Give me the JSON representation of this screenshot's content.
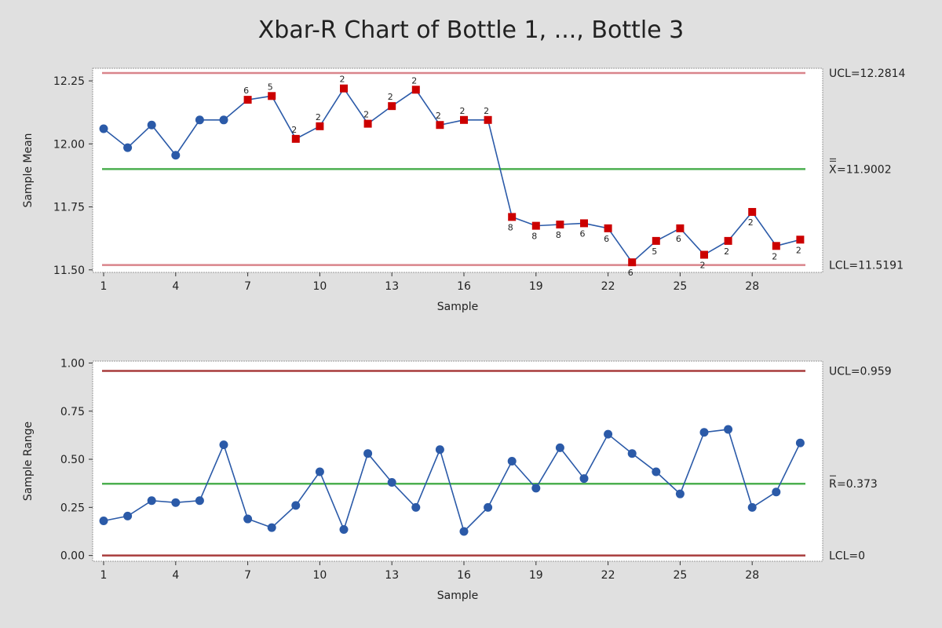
{
  "chart_data": {
    "type": "line",
    "title": "Xbar-R Chart of Bottle 1, ..., Bottle 3",
    "colors": {
      "points": "#2b5aa8",
      "out_of_control": "#cc0000",
      "center_line": "#4caf50",
      "limit_line_xbar": "#d9848b",
      "limit_line_r": "#a83c3c"
    },
    "panels": [
      {
        "id": "xbar",
        "ylabel": "Sample Mean",
        "xlabel": "Sample",
        "ylim": [
          11.49,
          12.3
        ],
        "yticks": [
          "11.50",
          "11.75",
          "12.00",
          "12.25"
        ],
        "ytick_values": [
          11.5,
          11.75,
          12.0,
          12.25
        ],
        "xticks": [
          1,
          4,
          7,
          10,
          13,
          16,
          19,
          22,
          25,
          28
        ],
        "ucl": 12.2814,
        "center": 11.9002,
        "lcl": 11.5191,
        "ucl_label": "UCL=12.2814",
        "center_label": "=11.9002",
        "center_symbol": "X",
        "lcl_label": "LCL=11.5191",
        "points": [
          {
            "x": 1,
            "y": 12.06,
            "flag": ""
          },
          {
            "x": 2,
            "y": 11.985,
            "flag": ""
          },
          {
            "x": 3,
            "y": 12.075,
            "flag": ""
          },
          {
            "x": 4,
            "y": 11.955,
            "flag": ""
          },
          {
            "x": 5,
            "y": 12.095,
            "flag": ""
          },
          {
            "x": 6,
            "y": 12.095,
            "flag": ""
          },
          {
            "x": 7,
            "y": 12.175,
            "flag": "6"
          },
          {
            "x": 8,
            "y": 12.19,
            "flag": "5"
          },
          {
            "x": 9,
            "y": 12.02,
            "flag": "2"
          },
          {
            "x": 10,
            "y": 12.07,
            "flag": "2"
          },
          {
            "x": 11,
            "y": 12.22,
            "flag": "2"
          },
          {
            "x": 12,
            "y": 12.08,
            "flag": "2"
          },
          {
            "x": 13,
            "y": 12.15,
            "flag": "2"
          },
          {
            "x": 14,
            "y": 12.215,
            "flag": "2"
          },
          {
            "x": 15,
            "y": 12.075,
            "flag": "2"
          },
          {
            "x": 16,
            "y": 12.095,
            "flag": "2"
          },
          {
            "x": 17,
            "y": 12.095,
            "flag": "2"
          },
          {
            "x": 18,
            "y": 11.71,
            "flag": "8"
          },
          {
            "x": 19,
            "y": 11.675,
            "flag": "8"
          },
          {
            "x": 20,
            "y": 11.68,
            "flag": "8"
          },
          {
            "x": 21,
            "y": 11.685,
            "flag": "6"
          },
          {
            "x": 22,
            "y": 11.665,
            "flag": "6"
          },
          {
            "x": 23,
            "y": 11.53,
            "flag": "6"
          },
          {
            "x": 24,
            "y": 11.615,
            "flag": "5"
          },
          {
            "x": 25,
            "y": 11.665,
            "flag": "6"
          },
          {
            "x": 26,
            "y": 11.56,
            "flag": "2"
          },
          {
            "x": 27,
            "y": 11.615,
            "flag": "2"
          },
          {
            "x": 28,
            "y": 11.73,
            "flag": "2"
          },
          {
            "x": 29,
            "y": 11.595,
            "flag": "2"
          },
          {
            "x": 30,
            "y": 11.62,
            "flag": "2"
          }
        ]
      },
      {
        "id": "range",
        "ylabel": "Sample Range",
        "xlabel": "Sample",
        "ylim": [
          -0.03,
          1.01
        ],
        "yticks": [
          "0.00",
          "0.25",
          "0.50",
          "0.75",
          "1.00"
        ],
        "ytick_values": [
          0,
          0.25,
          0.5,
          0.75,
          1.0
        ],
        "xticks": [
          1,
          4,
          7,
          10,
          13,
          16,
          19,
          22,
          25,
          28
        ],
        "ucl": 0.959,
        "center": 0.373,
        "lcl": 0,
        "ucl_label": "UCL=0.959",
        "center_label": "=0.373",
        "center_symbol": "R",
        "lcl_label": "LCL=0",
        "points": [
          {
            "x": 1,
            "y": 0.18,
            "flag": ""
          },
          {
            "x": 2,
            "y": 0.205,
            "flag": ""
          },
          {
            "x": 3,
            "y": 0.285,
            "flag": ""
          },
          {
            "x": 4,
            "y": 0.275,
            "flag": ""
          },
          {
            "x": 5,
            "y": 0.285,
            "flag": ""
          },
          {
            "x": 6,
            "y": 0.575,
            "flag": ""
          },
          {
            "x": 7,
            "y": 0.19,
            "flag": ""
          },
          {
            "x": 8,
            "y": 0.145,
            "flag": ""
          },
          {
            "x": 9,
            "y": 0.26,
            "flag": ""
          },
          {
            "x": 10,
            "y": 0.435,
            "flag": ""
          },
          {
            "x": 11,
            "y": 0.135,
            "flag": ""
          },
          {
            "x": 12,
            "y": 0.53,
            "flag": ""
          },
          {
            "x": 13,
            "y": 0.38,
            "flag": ""
          },
          {
            "x": 14,
            "y": 0.25,
            "flag": ""
          },
          {
            "x": 15,
            "y": 0.55,
            "flag": ""
          },
          {
            "x": 16,
            "y": 0.125,
            "flag": ""
          },
          {
            "x": 17,
            "y": 0.25,
            "flag": ""
          },
          {
            "x": 18,
            "y": 0.49,
            "flag": ""
          },
          {
            "x": 19,
            "y": 0.35,
            "flag": ""
          },
          {
            "x": 20,
            "y": 0.56,
            "flag": ""
          },
          {
            "x": 21,
            "y": 0.4,
            "flag": ""
          },
          {
            "x": 22,
            "y": 0.63,
            "flag": ""
          },
          {
            "x": 23,
            "y": 0.53,
            "flag": ""
          },
          {
            "x": 24,
            "y": 0.435,
            "flag": ""
          },
          {
            "x": 25,
            "y": 0.32,
            "flag": ""
          },
          {
            "x": 26,
            "y": 0.64,
            "flag": ""
          },
          {
            "x": 27,
            "y": 0.655,
            "flag": ""
          },
          {
            "x": 28,
            "y": 0.25,
            "flag": ""
          },
          {
            "x": 29,
            "y": 0.33,
            "flag": ""
          },
          {
            "x": 30,
            "y": 0.585,
            "flag": ""
          }
        ]
      }
    ]
  }
}
